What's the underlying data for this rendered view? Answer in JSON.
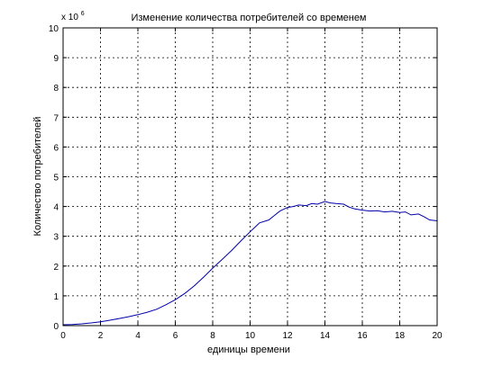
{
  "chart_data": {
    "type": "line",
    "title": "Изменение количества потребителей со временем",
    "xlabel": "единицы времени",
    "ylabel": "Количество потребителей",
    "y_multiplier_text": "x 10",
    "y_multiplier_exponent": "6",
    "xlim": [
      0,
      20
    ],
    "ylim": [
      0,
      10
    ],
    "xticks": [
      0,
      2,
      4,
      6,
      8,
      10,
      12,
      14,
      16,
      18,
      20
    ],
    "yticks": [
      0,
      1,
      2,
      3,
      4,
      5,
      6,
      7,
      8,
      9,
      10
    ],
    "grid": true,
    "legend": "none",
    "line_color": "#0000aa",
    "series": [
      {
        "x": [
          0,
          0.5,
          1,
          1.5,
          2,
          2.5,
          3,
          3.5,
          4,
          4.5,
          5,
          5.5,
          6,
          6.5,
          7,
          7.5,
          8,
          8.5,
          9,
          9.5,
          10,
          10.5,
          11,
          11.3,
          11.6,
          12,
          12.3,
          12.6,
          13,
          13.3,
          13.6,
          14,
          14.3,
          14.6,
          15,
          15.3,
          15.6,
          16,
          16.4,
          16.8,
          17.2,
          17.6,
          18,
          18.3,
          18.6,
          19,
          19.3,
          19.6,
          20
        ],
        "y": [
          0.03,
          0.04,
          0.06,
          0.09,
          0.13,
          0.18,
          0.24,
          0.3,
          0.37,
          0.45,
          0.55,
          0.7,
          0.87,
          1.08,
          1.33,
          1.62,
          1.93,
          2.22,
          2.52,
          2.84,
          3.15,
          3.45,
          3.55,
          3.7,
          3.85,
          3.97,
          4.0,
          4.05,
          4.03,
          4.1,
          4.08,
          4.17,
          4.12,
          4.1,
          4.08,
          3.98,
          3.92,
          3.88,
          3.85,
          3.86,
          3.82,
          3.84,
          3.8,
          3.82,
          3.72,
          3.75,
          3.66,
          3.55,
          3.52
        ]
      }
    ]
  }
}
